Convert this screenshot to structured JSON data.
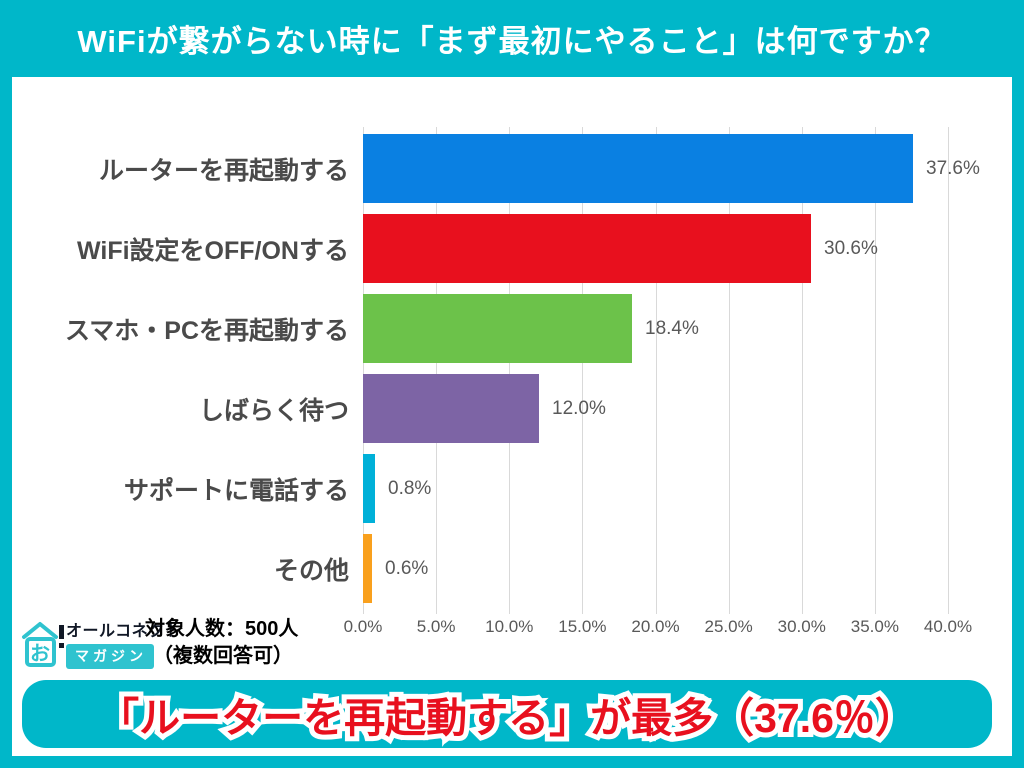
{
  "header": {
    "title": "WiFiが繋がらない時に「まず最初にやること」は何ですか？"
  },
  "chart_data": {
    "type": "bar",
    "orientation": "horizontal",
    "title": "WiFiが繋がらない時に「まず最初にやること」は何ですか？",
    "categories": [
      "ルーターを再起動する",
      "WiFi設定をOFF/ONする",
      "スマホ・PCを再起動する",
      "しばらく待つ",
      "サポートに電話する",
      "その他"
    ],
    "values": [
      37.6,
      30.6,
      18.4,
      12.0,
      0.8,
      0.6
    ],
    "value_labels": [
      "37.6%",
      "30.6%",
      "18.4%",
      "12.0%",
      "0.8%",
      "0.6%"
    ],
    "bar_colors": [
      "#0a80e2",
      "#e8101e",
      "#6cc24a",
      "#7d64a5",
      "#00b0d8",
      "#f9a01d"
    ],
    "x_ticks": [
      "0.0%",
      "5.0%",
      "10.0%",
      "15.0%",
      "20.0%",
      "25.0%",
      "30.0%",
      "35.0%",
      "40.0%"
    ],
    "xlim": [
      0,
      40
    ],
    "grid": true,
    "gridline_color": "#d9d9d9",
    "legend": "none"
  },
  "footer": {
    "logo": {
      "mark": "お",
      "exclamation": "!",
      "brand": "オールコネクト",
      "sub": "マガジン"
    },
    "note_line1": "対象人数：500人",
    "note_line2": "（複数回答可）"
  },
  "banner": {
    "text": "「ルーターを再起動する」が最多（37.6％）"
  },
  "colors": {
    "accent_cyan": "#00b7c9",
    "banner_text_red": "#e8101e",
    "label_gray": "#595959",
    "category_gray": "#4a4a4a"
  }
}
